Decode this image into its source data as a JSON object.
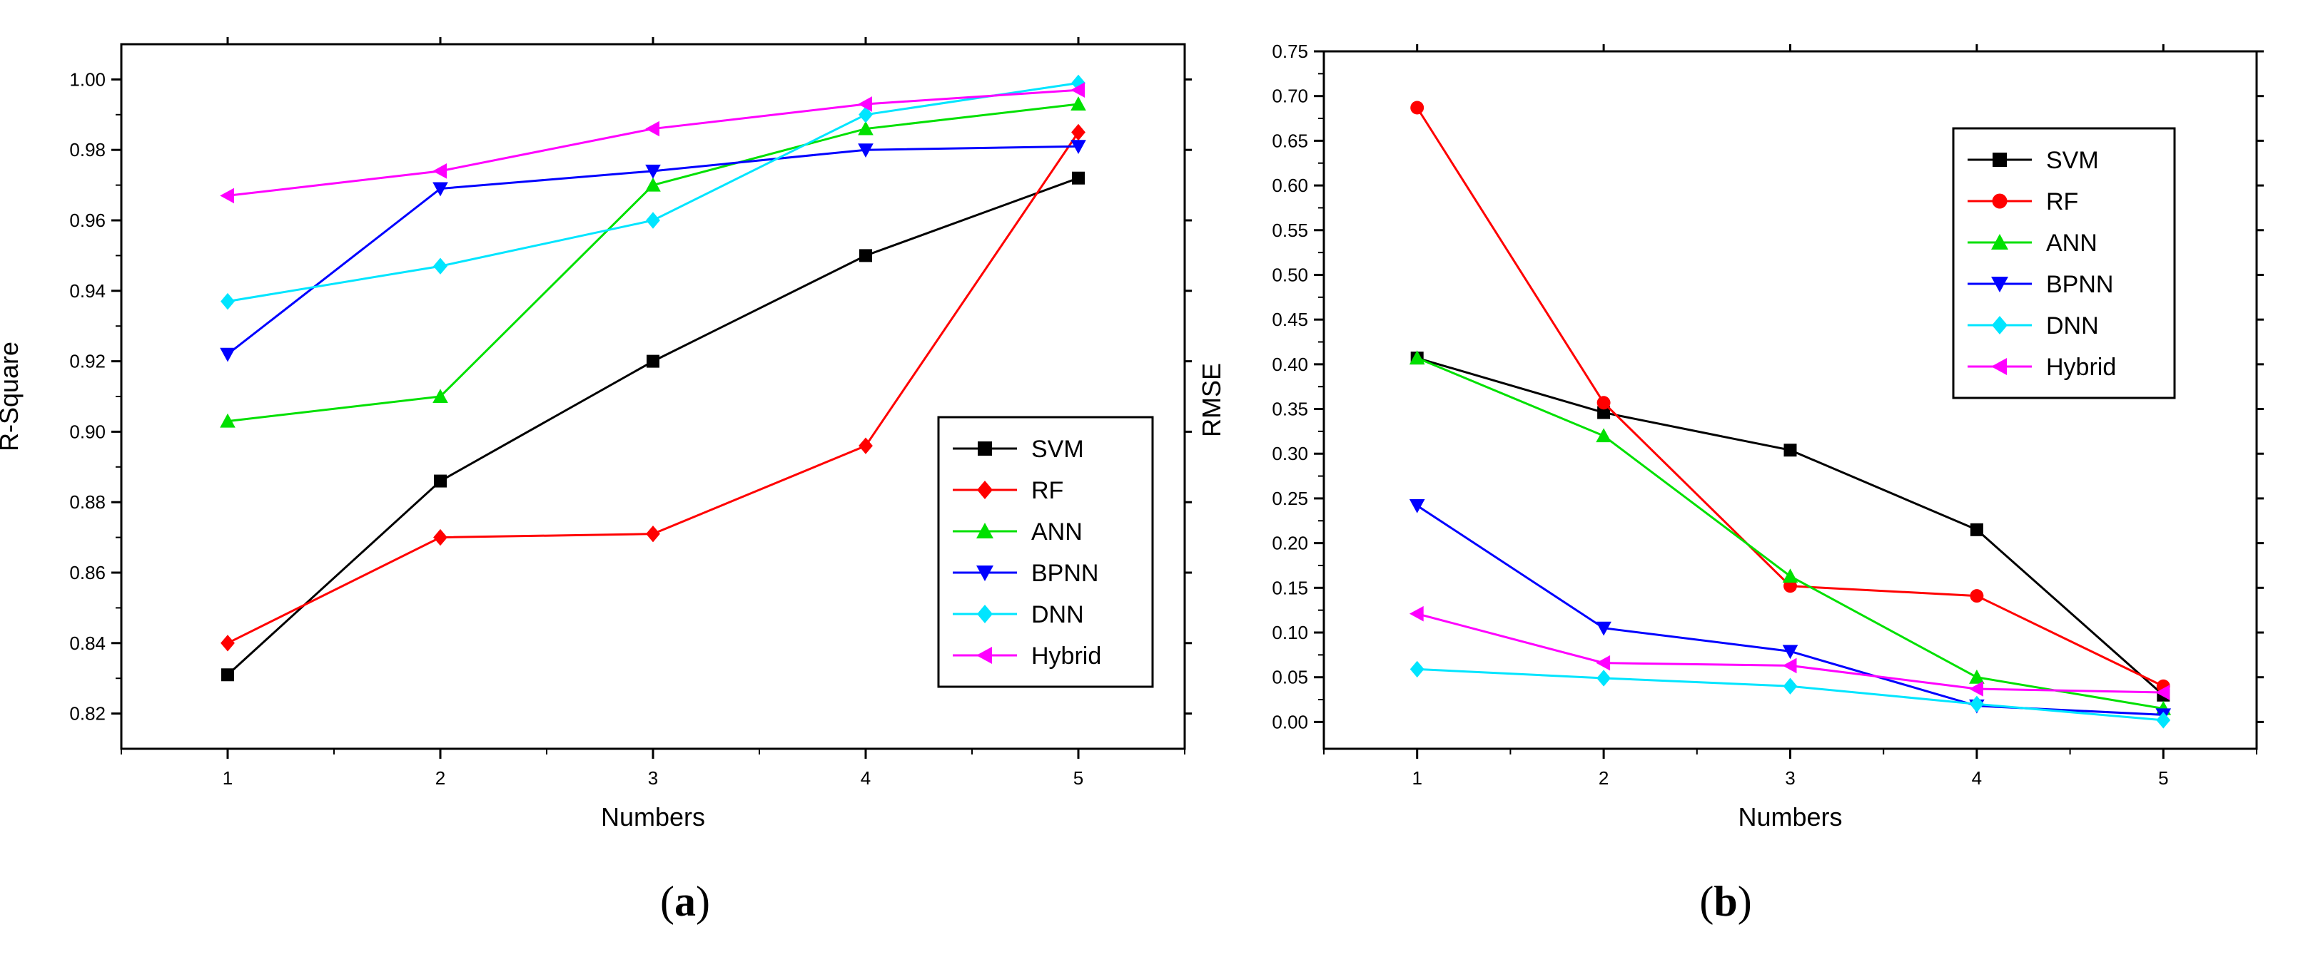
{
  "chart_data": [
    {
      "type": "line",
      "panel": "(a)",
      "panel_letter": "a",
      "title": "",
      "xlabel": "Numbers",
      "ylabel": "R-Square",
      "x": [
        1,
        2,
        3,
        4,
        5
      ],
      "xlim": [
        0.5,
        5.5
      ],
      "ylim": [
        0.81,
        1.01
      ],
      "xticks": [
        1,
        2,
        3,
        4,
        5
      ],
      "yticks": [
        0.82,
        0.84,
        0.86,
        0.88,
        0.9,
        0.92,
        0.94,
        0.96,
        0.98,
        1.0
      ],
      "ytick_decimals": 2,
      "grid": false,
      "legend_position": "bottom-right",
      "series": [
        {
          "name": "SVM",
          "color": "#000000",
          "marker": "square",
          "values": [
            0.831,
            0.886,
            0.92,
            0.95,
            0.972
          ]
        },
        {
          "name": "RF",
          "color": "#ff0000",
          "marker": "diamond",
          "values": [
            0.84,
            0.87,
            0.871,
            0.896,
            0.985
          ]
        },
        {
          "name": "ANN",
          "color": "#00e000",
          "marker": "triangle-up",
          "values": [
            0.903,
            0.91,
            0.97,
            0.986,
            0.993
          ]
        },
        {
          "name": "BPNN",
          "color": "#0000ff",
          "marker": "triangle-down",
          "values": [
            0.922,
            0.969,
            0.974,
            0.98,
            0.981
          ]
        },
        {
          "name": "DNN",
          "color": "#00e5ff",
          "marker": "diamond",
          "values": [
            0.937,
            0.947,
            0.96,
            0.99,
            0.999
          ]
        },
        {
          "name": "Hybrid",
          "color": "#ff00ff",
          "marker": "triangle-left",
          "values": [
            0.967,
            0.974,
            0.986,
            0.993,
            0.997
          ]
        }
      ]
    },
    {
      "type": "line",
      "panel": "(b)",
      "panel_letter": "b",
      "title": "",
      "xlabel": "Numbers",
      "ylabel": "RMSE",
      "x": [
        1,
        2,
        3,
        4,
        5
      ],
      "xlim": [
        0.5,
        5.5
      ],
      "ylim": [
        -0.03,
        0.75
      ],
      "xticks": [
        1,
        2,
        3,
        4,
        5
      ],
      "yticks": [
        0.0,
        0.05,
        0.1,
        0.15,
        0.2,
        0.25,
        0.3,
        0.35,
        0.4,
        0.45,
        0.5,
        0.55,
        0.6,
        0.65,
        0.7,
        0.75
      ],
      "ytick_decimals": 2,
      "grid": false,
      "legend_position": "top-right",
      "series": [
        {
          "name": "SVM",
          "color": "#000000",
          "marker": "square",
          "values": [
            0.407,
            0.346,
            0.304,
            0.215,
            0.03
          ]
        },
        {
          "name": "RF",
          "color": "#ff0000",
          "marker": "circle",
          "values": [
            0.687,
            0.357,
            0.152,
            0.141,
            0.04
          ]
        },
        {
          "name": "ANN",
          "color": "#00e000",
          "marker": "triangle-up",
          "values": [
            0.407,
            0.32,
            0.163,
            0.05,
            0.015
          ]
        },
        {
          "name": "BPNN",
          "color": "#0000ff",
          "marker": "triangle-down",
          "values": [
            0.242,
            0.105,
            0.079,
            0.018,
            0.008
          ]
        },
        {
          "name": "DNN",
          "color": "#00e5ff",
          "marker": "diamond",
          "values": [
            0.059,
            0.049,
            0.04,
            0.02,
            0.002
          ]
        },
        {
          "name": "Hybrid",
          "color": "#ff00ff",
          "marker": "triangle-left",
          "values": [
            0.121,
            0.066,
            0.063,
            0.037,
            0.033
          ]
        }
      ]
    }
  ]
}
